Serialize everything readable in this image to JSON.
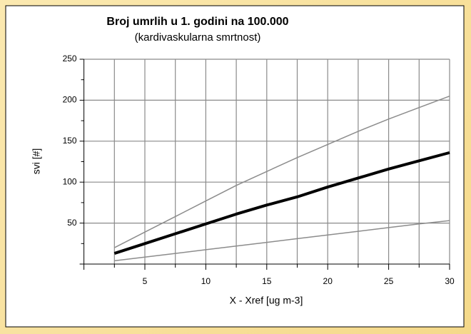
{
  "chart_data": {
    "type": "line",
    "title": "Broj umrlih u 1. godini na 100.000",
    "subtitle": "(kardivaskularna smrtnost)",
    "x_label": "X - Xref [ug m-3]",
    "y_label": "svi [#]",
    "x": [
      2.5,
      5,
      7.5,
      10,
      12.5,
      15,
      17.5,
      20,
      22.5,
      25,
      27.5,
      30
    ],
    "series": [
      {
        "color": "#8c8c8c",
        "width": 1.5,
        "values": [
          20,
          39,
          58,
          77,
          96,
          113,
          130,
          146,
          162,
          177,
          191,
          205
        ]
      },
      {
        "color": "#8c8c8c",
        "width": 1.5,
        "values": [
          4,
          8.5,
          13,
          17.5,
          22,
          26.5,
          31,
          35.5,
          40,
          44.5,
          49,
          53
        ]
      },
      {
        "color": "#000000",
        "width": 4,
        "values": [
          13,
          25,
          37,
          49,
          61,
          72,
          82,
          94,
          105,
          116,
          126,
          136
        ]
      }
    ],
    "xlim": [
      0,
      30
    ],
    "ylim": [
      0,
      250
    ],
    "xticks": [
      5,
      10,
      15,
      20,
      25,
      30
    ],
    "xminor": [
      2.5,
      7.5,
      12.5,
      17.5,
      22.5,
      27.5
    ],
    "yticks": [
      50,
      100,
      150,
      200,
      250
    ],
    "yminor": [
      25,
      75,
      125,
      175,
      225
    ],
    "grid": true
  }
}
